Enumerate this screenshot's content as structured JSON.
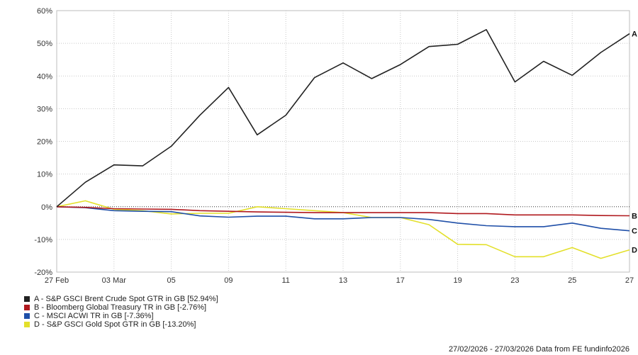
{
  "chart_data": {
    "type": "line",
    "x_ticks": [
      "27 Feb",
      "03 Mar",
      "05",
      "09",
      "11",
      "13",
      "17",
      "19",
      "23",
      "25",
      "27"
    ],
    "y_ticks": [
      "60%",
      "50%",
      "40%",
      "30%",
      "20%",
      "10%",
      "0%",
      "-10%",
      "-20%"
    ],
    "ylim": [
      -20,
      60
    ],
    "grid": true,
    "x": [
      "2026-02-27",
      "2026-03-02",
      "2026-03-03",
      "2026-03-04",
      "2026-03-05",
      "2026-03-06",
      "2026-03-09",
      "2026-03-10",
      "2026-03-11",
      "2026-03-12",
      "2026-03-13",
      "2026-03-16",
      "2026-03-17",
      "2026-03-18",
      "2026-03-19",
      "2026-03-20",
      "2026-03-23",
      "2026-03-24",
      "2026-03-25",
      "2026-03-26",
      "2026-03-27"
    ],
    "series": [
      {
        "name": "A - S&P GSCI Brent Crude Spot GTR in GB [52.94%]",
        "label": "A",
        "color": "#222222",
        "values": [
          0,
          7.5,
          12.8,
          12.5,
          18.5,
          28,
          36.5,
          22,
          28,
          39.5,
          44,
          39.2,
          43.5,
          49,
          49.7,
          54.2,
          38.2,
          44.5,
          40.2,
          47.2,
          52.94
        ]
      },
      {
        "name": "B - Bloomberg Global Treasury TR in GB [-2.76%]",
        "label": "B",
        "color": "#b0191e",
        "values": [
          0,
          -0.2,
          -0.6,
          -0.7,
          -0.8,
          -1.2,
          -1.4,
          -1.6,
          -1.7,
          -1.8,
          -1.8,
          -1.8,
          -1.8,
          -1.8,
          -2.1,
          -2.1,
          -2.5,
          -2.5,
          -2.5,
          -2.7,
          -2.76
        ]
      },
      {
        "name": "C - MSCI ACWI TR in GB [-7.36%]",
        "label": "C",
        "color": "#1f4fa8",
        "values": [
          0,
          -0.3,
          -1.2,
          -1.4,
          -1.5,
          -2.8,
          -3.2,
          -2.9,
          -2.9,
          -3.7,
          -3.7,
          -3.3,
          -3.3,
          -3.9,
          -5.0,
          -5.8,
          -6.1,
          -6.1,
          -5.0,
          -6.6,
          -7.36
        ]
      },
      {
        "name": "D - S&P GSCI Gold Spot GTR in GB [-13.20%]",
        "label": "D",
        "color": "#e3e02b",
        "values": [
          0,
          1.8,
          -0.8,
          -1.2,
          -2.2,
          -2.0,
          -2.0,
          0.0,
          -0.6,
          -1.2,
          -1.8,
          -3.3,
          -3.3,
          -5.5,
          -11.5,
          -11.6,
          -15.3,
          -15.3,
          -12.5,
          -15.8,
          -13.2
        ]
      }
    ]
  },
  "footer": "27/02/2026 - 27/03/2026 Data from FE fundinfo2026"
}
